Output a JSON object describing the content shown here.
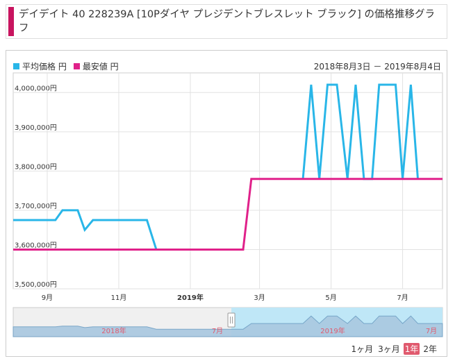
{
  "title": "デイデイト 40 228239A [10Pダイヤ プレジデントブレスレット ブラック] の価格推移グラフ",
  "date_range": "2018年8月3日 － 2019年8月4日",
  "legend": [
    {
      "label": "平均価格 円",
      "color": "#29b6e8"
    },
    {
      "label": "最安値 円",
      "color": "#e0218a"
    }
  ],
  "range_selector": {
    "options": [
      "1ヶ月",
      "3ヶ月",
      "1年",
      "2年"
    ],
    "selected": "1年"
  },
  "navigator": {
    "labels": [
      "2018年",
      "7月",
      "2019年",
      "7月"
    ]
  },
  "chart_data": {
    "type": "line",
    "xlim": [
      "2018-08-03",
      "2019-08-04"
    ],
    "ylim": [
      3500000,
      4050000
    ],
    "yticks": [
      3500000,
      3600000,
      3700000,
      3800000,
      3900000,
      4000000
    ],
    "ytick_labels": [
      "3,500,000円",
      "3,600,000円",
      "3,700,000円",
      "3,800,000円",
      "3,900,000円",
      "4,000,000円"
    ],
    "xticks": [
      "2018-09-01",
      "2018-11-01",
      "2019-01-01",
      "2019-03-01",
      "2019-05-01",
      "2019-07-01"
    ],
    "xtick_labels": [
      "9月",
      "11月",
      "2019年",
      "3月",
      "5月",
      "7月"
    ],
    "grid": true,
    "legend_position": "top-left",
    "series": [
      {
        "name": "平均価格 円",
        "color": "#29b6e8",
        "segments": [
          [
            [
              "2018-08-03",
              3675000
            ],
            [
              "2018-09-08",
              3675000
            ],
            [
              "2018-09-14",
              3700000
            ],
            [
              "2018-09-27",
              3700000
            ],
            [
              "2018-10-03",
              3650000
            ],
            [
              "2018-10-10",
              3675000
            ],
            [
              "2018-11-25",
              3675000
            ],
            [
              "2018-12-03",
              3600000
            ]
          ],
          [
            [
              "2019-04-07",
              3780000
            ],
            [
              "2019-04-14",
              4020000
            ],
            [
              "2019-04-21",
              3780000
            ],
            [
              "2019-04-28",
              4020000
            ],
            [
              "2019-05-06",
              4020000
            ],
            [
              "2019-05-15",
              3780000
            ],
            [
              "2019-05-22",
              4020000
            ],
            [
              "2019-05-29",
              3780000
            ],
            [
              "2019-06-05",
              3780000
            ],
            [
              "2019-06-11",
              4020000
            ],
            [
              "2019-06-25",
              4020000
            ],
            [
              "2019-07-01",
              3780000
            ],
            [
              "2019-07-08",
              4020000
            ],
            [
              "2019-07-14",
              3780000
            ]
          ]
        ]
      },
      {
        "name": "最安値 円",
        "color": "#e0218a",
        "segments": [
          [
            [
              "2018-08-03",
              3600000
            ],
            [
              "2019-02-15",
              3600000
            ],
            [
              "2019-02-22",
              3780000
            ],
            [
              "2019-08-04",
              3780000
            ]
          ]
        ]
      }
    ]
  }
}
